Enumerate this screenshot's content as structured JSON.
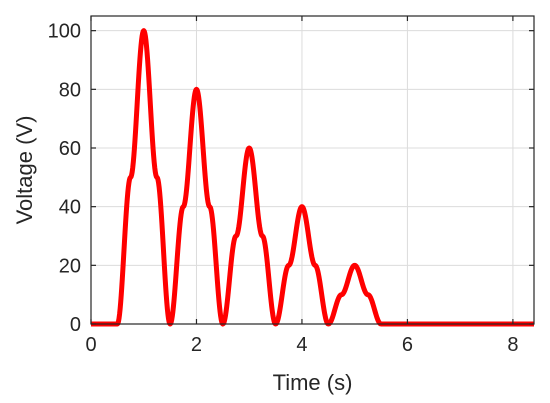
{
  "chart_data": {
    "type": "line",
    "xlabel": "Time (s)",
    "ylabel": "Voltage (V)",
    "xlim": [
      0,
      8.4
    ],
    "ylim": [
      0,
      105
    ],
    "xticks": [
      0,
      2,
      4,
      6,
      8
    ],
    "yticks": [
      0,
      20,
      40,
      60,
      80,
      100
    ],
    "grid": true,
    "series": [
      {
        "color": "#ff0000",
        "x": [
          0,
          0.5,
          0.75,
          1.0,
          1.25,
          1.5,
          1.75,
          2.0,
          2.25,
          2.5,
          2.75,
          3.0,
          3.25,
          3.5,
          3.75,
          4.0,
          4.25,
          4.5,
          4.75,
          5.0,
          5.25,
          5.5,
          6.0,
          7.0,
          8.4
        ],
        "y": [
          0,
          0,
          50,
          100,
          50,
          0,
          40,
          80,
          40,
          0,
          30,
          60,
          30,
          0,
          20,
          40,
          20,
          0,
          10,
          20,
          10,
          0,
          0,
          0,
          0
        ]
      }
    ]
  }
}
